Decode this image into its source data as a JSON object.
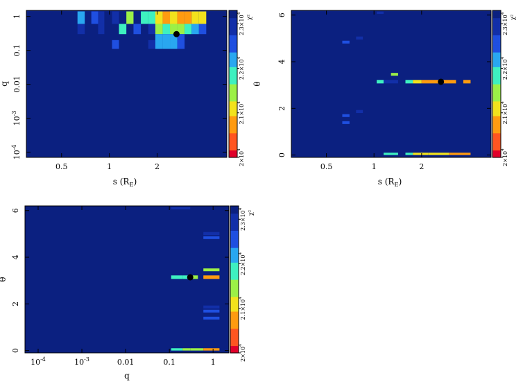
{
  "chart_data": [
    {
      "id": "s-q",
      "type": "heatmap",
      "xlabel": "s (R_E)",
      "ylabel": "q",
      "xscale": "log",
      "yscale": "log",
      "xlim": [
        0.3,
        5.5
      ],
      "ylim": [
        7e-05,
        1.5
      ],
      "xticks": [
        0.5,
        1,
        2
      ],
      "xtick_labels": [
        "0.5",
        "1",
        "2"
      ],
      "yticks": [
        1,
        0.1,
        0.01,
        0.001,
        0.0001
      ],
      "ytick_labels": [
        "1",
        "0.1",
        "0.01",
        "10^-3",
        "10^-4"
      ],
      "background_chi2": 23300,
      "cells": [
        {
          "x0": 0.63,
          "x1": 0.7,
          "y0": 0.6,
          "y1": 1.4,
          "chi2": 22300
        },
        {
          "x0": 0.77,
          "x1": 0.85,
          "y0": 0.6,
          "y1": 1.4,
          "chi2": 22700
        },
        {
          "x0": 0.85,
          "x1": 0.93,
          "y0": 0.6,
          "y1": 1.4,
          "chi2": 23000
        },
        {
          "x0": 1.04,
          "x1": 1.15,
          "y0": 0.6,
          "y1": 1.4,
          "chi2": 23000
        },
        {
          "x0": 1.28,
          "x1": 1.42,
          "y0": 0.6,
          "y1": 1.4,
          "chi2": 21300
        },
        {
          "x0": 1.58,
          "x1": 1.76,
          "y0": 0.6,
          "y1": 1.4,
          "chi2": 21900
        },
        {
          "x0": 1.76,
          "x1": 1.95,
          "y0": 0.6,
          "y1": 1.4,
          "chi2": 21700
        },
        {
          "x0": 1.95,
          "x1": 2.17,
          "y0": 0.6,
          "y1": 1.4,
          "chi2": 21200
        },
        {
          "x0": 2.17,
          "x1": 2.41,
          "y0": 0.6,
          "y1": 1.4,
          "chi2": 20900
        },
        {
          "x0": 2.41,
          "x1": 2.68,
          "y0": 0.6,
          "y1": 1.4,
          "chi2": 21000
        },
        {
          "x0": 2.68,
          "x1": 2.98,
          "y0": 0.6,
          "y1": 1.4,
          "chi2": 20800
        },
        {
          "x0": 2.98,
          "x1": 3.3,
          "y0": 0.6,
          "y1": 1.4,
          "chi2": 20900
        },
        {
          "x0": 3.3,
          "x1": 3.67,
          "y0": 0.6,
          "y1": 1.4,
          "chi2": 21100
        },
        {
          "x0": 3.67,
          "x1": 4.08,
          "y0": 0.6,
          "y1": 1.4,
          "chi2": 21200
        },
        {
          "x0": 0.63,
          "x1": 0.7,
          "y0": 0.3,
          "y1": 0.6,
          "chi2": 23100
        },
        {
          "x0": 0.85,
          "x1": 0.93,
          "y0": 0.3,
          "y1": 0.6,
          "chi2": 23100
        },
        {
          "x0": 1.15,
          "x1": 1.28,
          "y0": 0.3,
          "y1": 0.6,
          "chi2": 22000
        },
        {
          "x0": 1.42,
          "x1": 1.58,
          "y0": 0.3,
          "y1": 0.6,
          "chi2": 22500
        },
        {
          "x0": 1.76,
          "x1": 1.95,
          "y0": 0.3,
          "y1": 0.6,
          "chi2": 23000
        },
        {
          "x0": 1.95,
          "x1": 2.17,
          "y0": 0.3,
          "y1": 0.6,
          "chi2": 21600
        },
        {
          "x0": 2.17,
          "x1": 2.41,
          "y0": 0.3,
          "y1": 0.6,
          "chi2": 21700
        },
        {
          "x0": 2.41,
          "x1": 2.68,
          "y0": 0.3,
          "y1": 0.6,
          "chi2": 21600
        },
        {
          "x0": 2.68,
          "x1": 2.98,
          "y0": 0.3,
          "y1": 0.6,
          "chi2": 21500
        },
        {
          "x0": 2.98,
          "x1": 3.3,
          "y0": 0.3,
          "y1": 0.6,
          "chi2": 21800
        },
        {
          "x0": 3.3,
          "x1": 3.67,
          "y0": 0.3,
          "y1": 0.6,
          "chi2": 22200
        },
        {
          "x0": 3.67,
          "x1": 4.08,
          "y0": 0.3,
          "y1": 0.6,
          "chi2": 22400
        },
        {
          "x0": 1.04,
          "x1": 1.15,
          "y0": 0.11,
          "y1": 0.2,
          "chi2": 22400
        },
        {
          "x0": 1.76,
          "x1": 1.95,
          "y0": 0.11,
          "y1": 0.2,
          "chi2": 23000
        },
        {
          "x0": 1.95,
          "x1": 2.17,
          "y0": 0.11,
          "y1": 0.3,
          "chi2": 22100
        },
        {
          "x0": 2.17,
          "x1": 2.41,
          "y0": 0.11,
          "y1": 0.3,
          "chi2": 22200
        },
        {
          "x0": 2.41,
          "x1": 2.68,
          "y0": 0.11,
          "y1": 0.3,
          "chi2": 22300
        },
        {
          "x0": 2.68,
          "x1": 2.98,
          "y0": 0.11,
          "y1": 0.3,
          "chi2": 22400
        }
      ],
      "best_fit": {
        "x": 2.65,
        "y": 0.3
      }
    },
    {
      "id": "s-theta",
      "type": "heatmap",
      "xlabel": "s (R_E)",
      "ylabel": "θ",
      "xscale": "log",
      "yscale": "linear",
      "xlim": [
        0.3,
        5.5
      ],
      "ylim": [
        -0.1,
        6.2
      ],
      "xticks": [
        0.5,
        1,
        2
      ],
      "xtick_labels": [
        "0.5",
        "1",
        "2"
      ],
      "yticks": [
        0,
        2,
        4,
        6
      ],
      "ytick_labels": [
        "0",
        "2",
        "4",
        "6"
      ],
      "background_chi2": 23300,
      "cells": [
        {
          "x0": 1.04,
          "x1": 1.15,
          "y0": 6.05,
          "y1": 6.15,
          "chi2": 22900
        },
        {
          "x0": 0.77,
          "x1": 0.85,
          "y0": 4.95,
          "y1": 5.08,
          "chi2": 22900
        },
        {
          "x0": 0.63,
          "x1": 0.7,
          "y0": 4.78,
          "y1": 4.9,
          "chi2": 22400
        },
        {
          "x0": 1.28,
          "x1": 1.42,
          "y0": 3.4,
          "y1": 3.52,
          "chi2": 21300
        },
        {
          "x0": 1.04,
          "x1": 1.15,
          "y0": 3.07,
          "y1": 3.22,
          "chi2": 22000
        },
        {
          "x0": 1.15,
          "x1": 1.42,
          "y0": 3.07,
          "y1": 3.22,
          "chi2": 23100
        },
        {
          "x0": 1.58,
          "x1": 1.76,
          "y0": 3.07,
          "y1": 3.22,
          "chi2": 21800
        },
        {
          "x0": 1.76,
          "x1": 2.0,
          "y0": 3.07,
          "y1": 3.22,
          "chi2": 21000
        },
        {
          "x0": 2.0,
          "x1": 3.3,
          "y0": 3.07,
          "y1": 3.22,
          "chi2": 20800
        },
        {
          "x0": 3.67,
          "x1": 4.08,
          "y0": 3.07,
          "y1": 3.22,
          "chi2": 20900
        },
        {
          "x0": 0.77,
          "x1": 0.85,
          "y0": 1.8,
          "y1": 1.93,
          "chi2": 22900
        },
        {
          "x0": 0.63,
          "x1": 0.7,
          "y0": 1.63,
          "y1": 1.75,
          "chi2": 22400
        },
        {
          "x0": 0.63,
          "x1": 0.7,
          "y0": 1.33,
          "y1": 1.45,
          "chi2": 22400
        },
        {
          "x0": 1.15,
          "x1": 1.42,
          "y0": 0.0,
          "y1": 0.1,
          "chi2": 21800
        },
        {
          "x0": 1.58,
          "x1": 1.76,
          "y0": 0.0,
          "y1": 0.1,
          "chi2": 21700
        },
        {
          "x0": 1.76,
          "x1": 2.2,
          "y0": 0.0,
          "y1": 0.1,
          "chi2": 21200
        },
        {
          "x0": 2.2,
          "x1": 2.98,
          "y0": 0.0,
          "y1": 0.1,
          "chi2": 21000
        },
        {
          "x0": 2.98,
          "x1": 4.08,
          "y0": 0.0,
          "y1": 0.1,
          "chi2": 20700
        }
      ],
      "best_fit": {
        "x": 2.65,
        "y": 3.14
      }
    },
    {
      "id": "q-theta",
      "type": "heatmap",
      "xlabel": "q",
      "ylabel": "θ",
      "xscale": "log",
      "yscale": "linear",
      "xlim": [
        5e-05,
        2.3
      ],
      "ylim": [
        -0.1,
        6.2
      ],
      "xticks": [
        0.0001,
        0.001,
        0.01,
        0.1,
        1
      ],
      "xtick_labels": [
        "10^-4",
        "10^-3",
        "0.01",
        "0.1",
        "1"
      ],
      "yticks": [
        0,
        2,
        4,
        6
      ],
      "ytick_labels": [
        "0",
        "2",
        "4",
        "6"
      ],
      "background_chi2": 23300,
      "cells": [
        {
          "x0": 0.11,
          "x1": 0.3,
          "y0": 6.05,
          "y1": 6.15,
          "chi2": 22900
        },
        {
          "x0": 0.6,
          "x1": 1.4,
          "y0": 4.95,
          "y1": 5.08,
          "chi2": 22900
        },
        {
          "x0": 0.6,
          "x1": 1.4,
          "y0": 4.78,
          "y1": 4.9,
          "chi2": 22400
        },
        {
          "x0": 0.6,
          "x1": 1.4,
          "y0": 3.4,
          "y1": 3.52,
          "chi2": 21300
        },
        {
          "x0": 0.11,
          "x1": 0.2,
          "y0": 3.07,
          "y1": 3.22,
          "chi2": 22000
        },
        {
          "x0": 0.2,
          "x1": 0.3,
          "y0": 3.07,
          "y1": 3.22,
          "chi2": 21800
        },
        {
          "x0": 0.3,
          "x1": 0.45,
          "y0": 3.07,
          "y1": 3.22,
          "chi2": 21500
        },
        {
          "x0": 0.6,
          "x1": 1.4,
          "y0": 3.07,
          "y1": 3.22,
          "chi2": 20900
        },
        {
          "x0": 0.6,
          "x1": 1.4,
          "y0": 1.8,
          "y1": 1.93,
          "chi2": 22900
        },
        {
          "x0": 0.6,
          "x1": 1.4,
          "y0": 1.63,
          "y1": 1.75,
          "chi2": 22400
        },
        {
          "x0": 0.6,
          "x1": 1.4,
          "y0": 1.33,
          "y1": 1.45,
          "chi2": 22400
        },
        {
          "x0": 0.11,
          "x1": 0.2,
          "y0": 0.0,
          "y1": 0.1,
          "chi2": 21900
        },
        {
          "x0": 0.2,
          "x1": 0.3,
          "y0": 0.0,
          "y1": 0.1,
          "chi2": 21600
        },
        {
          "x0": 0.3,
          "x1": 0.6,
          "y0": 0.0,
          "y1": 0.1,
          "chi2": 21300
        },
        {
          "x0": 0.6,
          "x1": 1.4,
          "y0": 0.0,
          "y1": 0.1,
          "chi2": 20900
        }
      ],
      "best_fit": {
        "x": 0.3,
        "y": 3.14
      }
    }
  ],
  "colorbar": {
    "label": "χ²",
    "min": 20000,
    "max": 23300,
    "ticks": [
      20000,
      21000,
      22000,
      23000
    ],
    "tick_labels": [
      "2×10^4",
      "2.1×10^4",
      "2.2×10^4",
      "2.3×10^4"
    ],
    "colormap": [
      "#e0002a",
      "#ff5520",
      "#ff9b10",
      "#f2e21c",
      "#9cf047",
      "#3ef0c0",
      "#29a7f0",
      "#1f4fe0",
      "#122fa8",
      "#0b2080"
    ]
  }
}
